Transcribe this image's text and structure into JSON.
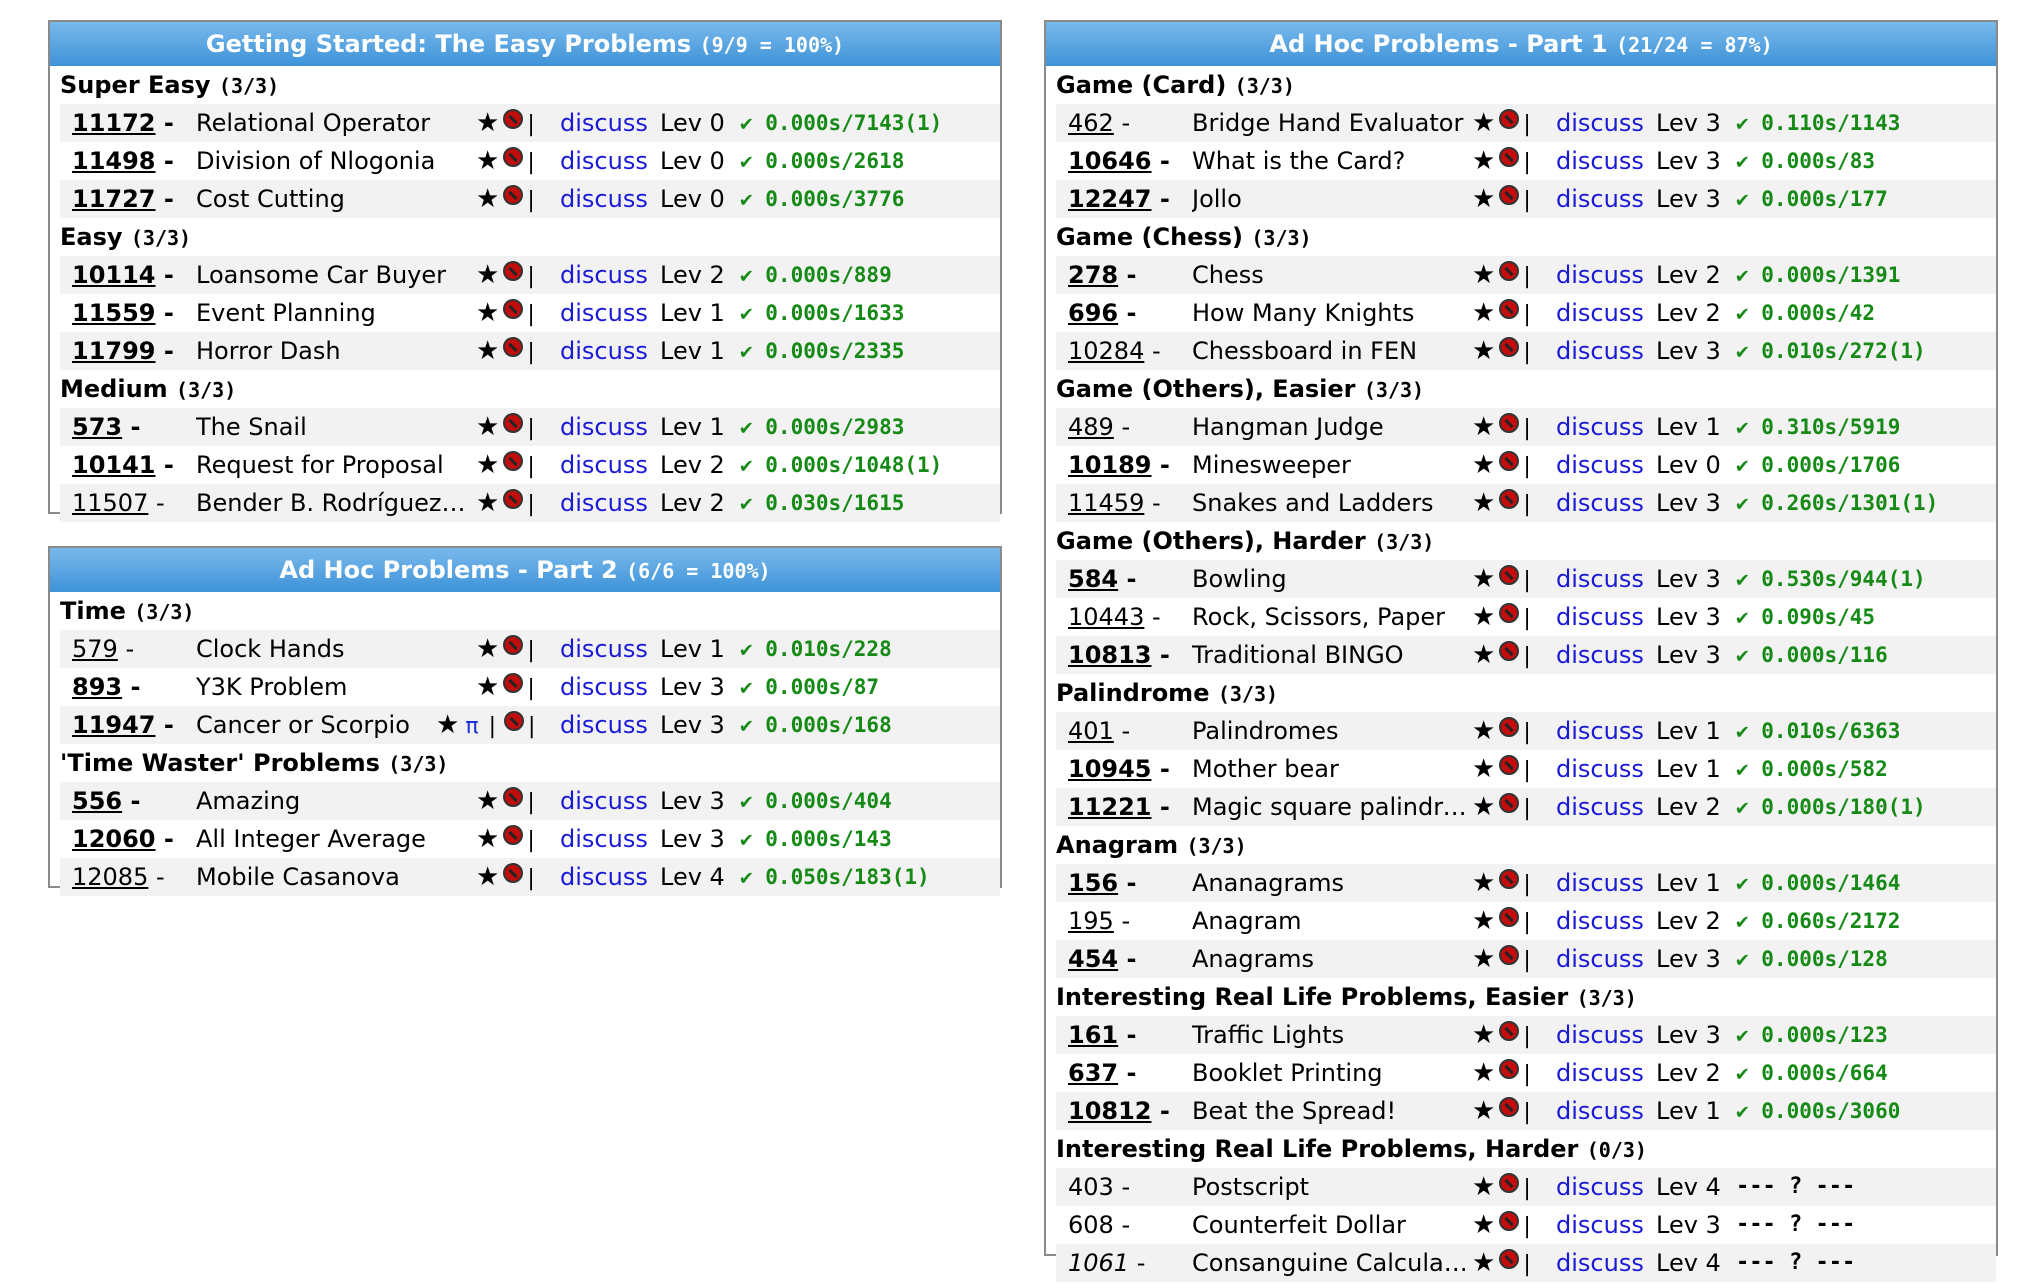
{
  "panels": [
    {
      "title": "Getting Started: The Easy Problems",
      "count": "(9/9 = 100%)",
      "groups": [
        {
          "name": "Super Easy",
          "count": "(3/3)",
          "rows": [
            {
              "num": "11172",
              "title": "Relational Operator",
              "lev": "Lev 0",
              "stat": "✔ 0.000s/7143(1)"
            },
            {
              "num": "11498",
              "title": "Division of Nlogonia",
              "lev": "Lev 0",
              "stat": "✔ 0.000s/2618"
            },
            {
              "num": "11727",
              "title": "Cost Cutting",
              "lev": "Lev 0",
              "stat": "✔ 0.000s/3776"
            }
          ]
        },
        {
          "name": "Easy",
          "count": "(3/3)",
          "rows": [
            {
              "num": "10114",
              "title": "Loansome Car Buyer",
              "lev": "Lev 2",
              "stat": "✔ 0.000s/889"
            },
            {
              "num": "11559",
              "title": "Event Planning",
              "lev": "Lev 1",
              "stat": "✔ 0.000s/1633"
            },
            {
              "num": "11799",
              "title": "Horror Dash",
              "lev": "Lev 1",
              "stat": "✔ 0.000s/2335"
            }
          ]
        },
        {
          "name": "Medium",
          "count": "(3/3)",
          "rows": [
            {
              "num": "573",
              "title": "The Snail",
              "lev": "Lev 1",
              "stat": "✔ 0.000s/2983"
            },
            {
              "num": "10141",
              "title": "Request for Proposal",
              "lev": "Lev 2",
              "stat": "✔ 0.000s/1048(1)"
            },
            {
              "num": "11507",
              "title": "Bender B. Rodríguez …",
              "lev": "Lev 2",
              "stat": "✔ 0.030s/1615"
            }
          ]
        }
      ]
    },
    {
      "title": "Ad Hoc Problems - Part 2",
      "count": "(6/6 = 100%)",
      "groups": [
        {
          "name": "Time",
          "count": "(3/3)",
          "rows": [
            {
              "num": "579",
              "title": "Clock Hands",
              "lev": "Lev 1",
              "stat": "✔ 0.010s/228"
            },
            {
              "num": "893",
              "title": "Y3K Problem",
              "lev": "Lev 3",
              "stat": "✔ 0.000s/87"
            },
            {
              "num": "11947",
              "title": "Cancer or Scorpio",
              "pi": "π",
              "lev": "Lev 3",
              "stat": "✔ 0.000s/168"
            }
          ]
        },
        {
          "name": "'Time Waster' Problems",
          "count": "(3/3)",
          "rows": [
            {
              "num": "556",
              "title": "Amazing",
              "lev": "Lev 3",
              "stat": "✔ 0.000s/404"
            },
            {
              "num": "12060",
              "title": "All Integer Average",
              "lev": "Lev 3",
              "stat": "✔ 0.000s/143"
            },
            {
              "num": "12085",
              "title": "Mobile Casanova",
              "lev": "Lev 4",
              "stat": "✔ 0.050s/183(1)"
            }
          ]
        }
      ]
    },
    {
      "title": "Ad Hoc Problems - Part 1",
      "count": "(21/24 = 87%)",
      "groups": [
        {
          "name": "Game (Card)",
          "count": "(3/3)",
          "rows": [
            {
              "num": "462",
              "title": "Bridge Hand Evaluator",
              "lev": "Lev 3",
              "stat": "✔ 0.110s/1143"
            },
            {
              "num": "10646",
              "title": "What is the Card?",
              "lev": "Lev 3",
              "stat": "✔ 0.000s/83"
            },
            {
              "num": "12247",
              "title": "Jollo",
              "lev": "Lev 3",
              "stat": "✔ 0.000s/177"
            }
          ]
        },
        {
          "name": "Game (Chess)",
          "count": "(3/3)",
          "rows": [
            {
              "num": "278",
              "title": "Chess",
              "lev": "Lev 2",
              "stat": "✔ 0.000s/1391"
            },
            {
              "num": "696",
              "title": "How Many Knights",
              "lev": "Lev 2",
              "stat": "✔ 0.000s/42"
            },
            {
              "num": "10284",
              "title": "Chessboard in FEN",
              "lev": "Lev 3",
              "stat": "✔ 0.010s/272(1)"
            }
          ]
        },
        {
          "name": "Game (Others), Easier",
          "count": "(3/3)",
          "rows": [
            {
              "num": "489",
              "title": "Hangman Judge",
              "lev": "Lev 1",
              "stat": "✔ 0.310s/5919"
            },
            {
              "num": "10189",
              "title": "Minesweeper",
              "lev": "Lev 0",
              "stat": "✔ 0.000s/1706"
            },
            {
              "num": "11459",
              "title": "Snakes and Ladders",
              "lev": "Lev 3",
              "stat": "✔ 0.260s/1301(1)"
            }
          ]
        },
        {
          "name": "Game (Others), Harder",
          "count": "(3/3)",
          "rows": [
            {
              "num": "584",
              "title": "Bowling",
              "lev": "Lev 3",
              "stat": "✔ 0.530s/944(1)"
            },
            {
              "num": "10443",
              "title": "Rock, Scissors, Paper",
              "lev": "Lev 3",
              "stat": "✔ 0.090s/45"
            },
            {
              "num": "10813",
              "title": "Traditional BINGO",
              "lev": "Lev 3",
              "stat": "✔ 0.000s/116"
            }
          ]
        },
        {
          "name": "Palindrome",
          "count": "(3/3)",
          "rows": [
            {
              "num": "401",
              "title": "Palindromes",
              "lev": "Lev 1",
              "stat": "✔ 0.010s/6363"
            },
            {
              "num": "10945",
              "title": "Mother bear",
              "lev": "Lev 1",
              "stat": "✔ 0.000s/582"
            },
            {
              "num": "11221",
              "title": "Magic square palindro…",
              "lev": "Lev 2",
              "stat": "✔ 0.000s/180(1)"
            }
          ]
        },
        {
          "name": "Anagram",
          "count": "(3/3)",
          "rows": [
            {
              "num": "156",
              "title": "Ananagrams",
              "lev": "Lev 1",
              "stat": "✔ 0.000s/1464"
            },
            {
              "num": "195",
              "title": "Anagram",
              "lev": "Lev 2",
              "stat": "✔ 0.060s/2172"
            },
            {
              "num": "454",
              "title": "Anagrams",
              "lev": "Lev 3",
              "stat": "✔ 0.000s/128"
            }
          ]
        },
        {
          "name": "Interesting Real Life Problems, Easier",
          "count": "(3/3)",
          "rows": [
            {
              "num": "161",
              "title": "Traffic Lights",
              "lev": "Lev 3",
              "stat": "✔ 0.000s/123"
            },
            {
              "num": "637",
              "title": "Booklet Printing",
              "lev": "Lev 2",
              "stat": "✔ 0.000s/664"
            },
            {
              "num": "10812",
              "title": "Beat the Spread!",
              "lev": "Lev 1",
              "stat": "✔ 0.000s/3060"
            }
          ]
        },
        {
          "name": "Interesting Real Life Problems, Harder",
          "count": "(0/3)",
          "rows": [
            {
              "num": "403",
              "title": "Postscript",
              "lev": "Lev 4",
              "stat": "--- ? ---"
            },
            {
              "num": "608",
              "title": "Counterfeit Dollar",
              "lev": "Lev 3",
              "stat": "--- ? ---"
            },
            {
              "num": "1061",
              "title": "Consanguine Calculati…",
              "lev": "Lev 4",
              "stat": "--- ? ---"
            }
          ]
        }
      ]
    }
  ],
  "common": {
    "star": "★",
    "sep": "|",
    "discuss": "discuss"
  },
  "colors": {
    "header_top": "#79b9ec",
    "header_bottom": "#3e93d8",
    "solved": "#168a16",
    "link": "#1a1ad6"
  }
}
